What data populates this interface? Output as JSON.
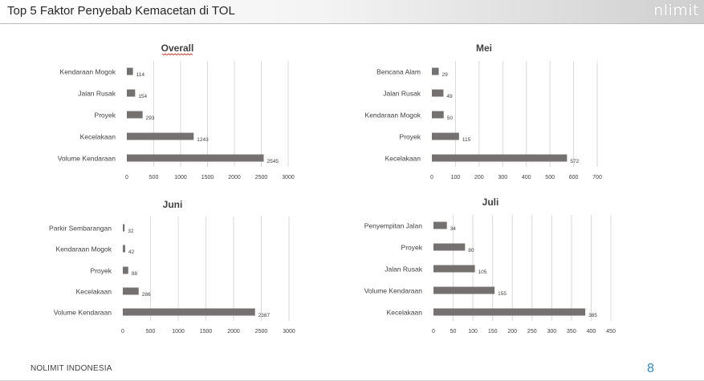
{
  "header": {
    "title": "Top 5 Faktor Penyebab Kemacetan di TOL",
    "logo_text": "nlimit"
  },
  "footer": {
    "company": "NOLIMIT INDONESIA",
    "page_number": "8"
  },
  "colors": {
    "bar": "#767171",
    "grid": "#d9d9d9",
    "accent": "#2e8bc0"
  },
  "chart_data": [
    {
      "type": "bar",
      "orientation": "horizontal",
      "title": "Overall",
      "categories": [
        "Kendaraan Mogok",
        "Jalan Rusak",
        "Proyek",
        "Kecelakaan",
        "Volume Kendaraan"
      ],
      "values": [
        114,
        154,
        293,
        1243,
        2545
      ],
      "xlim": [
        0,
        3000
      ],
      "xticks": [
        0,
        500,
        1000,
        1500,
        2000,
        2500,
        3000
      ],
      "grid": true
    },
    {
      "type": "bar",
      "orientation": "horizontal",
      "title": "Mei",
      "categories": [
        "Bencana Alam",
        "Jalan Rusak",
        "Kendaraan Mogok",
        "Proyek",
        "Kecelakaan"
      ],
      "values": [
        29,
        49,
        50,
        115,
        572
      ],
      "xlim": [
        0,
        700
      ],
      "xticks": [
        0,
        100,
        200,
        300,
        400,
        500,
        600,
        700
      ],
      "grid": true
    },
    {
      "type": "bar",
      "orientation": "horizontal",
      "title": "Juni",
      "categories": [
        "Parkir Sembarangan",
        "Kendaraan Mogok",
        "Proyek",
        "Kecelakaan",
        "Volume Kendaraan"
      ],
      "values": [
        32,
        42,
        98,
        286,
        2387
      ],
      "xlim": [
        0,
        3000
      ],
      "xticks": [
        0,
        500,
        1000,
        1500,
        2000,
        2500,
        3000
      ],
      "grid": true
    },
    {
      "type": "bar",
      "orientation": "horizontal",
      "title": "Juli",
      "categories": [
        "Penyempitan Jalan",
        "Proyek",
        "Jalan Rusak",
        "Volume Kendaraan",
        "Kecelakaan"
      ],
      "values": [
        34,
        80,
        105,
        155,
        385
      ],
      "xlim": [
        0,
        450
      ],
      "xticks": [
        0,
        50,
        100,
        150,
        200,
        250,
        300,
        350,
        400,
        450
      ],
      "grid": true
    }
  ]
}
